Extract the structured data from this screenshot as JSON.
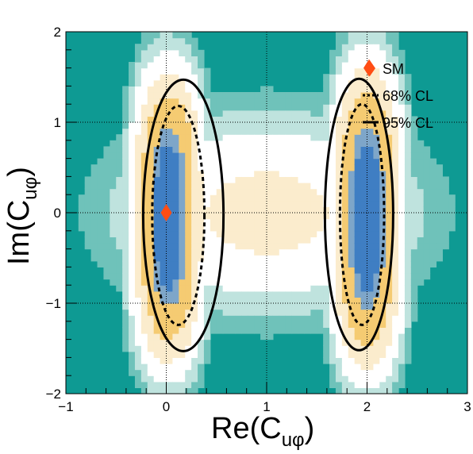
{
  "chart_data": {
    "type": "heatmap",
    "title": "",
    "xlabel": {
      "main": "Re(C",
      "sub": "uφ",
      "close": ")"
    },
    "ylabel": {
      "main": "Im(C",
      "sub": "uφ",
      "close": ")"
    },
    "xlim": [
      -1,
      3
    ],
    "ylim": [
      -2,
      2
    ],
    "xticks": [
      -1,
      0,
      1,
      2,
      3
    ],
    "yticks": [
      -2,
      -1,
      0,
      1,
      2
    ],
    "xtick_labels": [
      "−1",
      "0",
      "1",
      "2",
      "3"
    ],
    "ytick_labels": [
      "−2",
      "−1",
      "0",
      "1",
      "2"
    ],
    "grid": true,
    "legend_position": "top-right",
    "colors": {
      "background": "#0e9a93",
      "best": "#3f7ec3",
      "inner": "#7ea6c9",
      "mid": "#f5cb72",
      "outer": "#fbeccd",
      "edge": "#ffffff",
      "marker": "#ff4d14"
    },
    "islands": [
      {
        "center_x": 0.02,
        "center_y": -0.05,
        "half_width_95": 0.3,
        "half_height_95": 1.5
      },
      {
        "center_x": 2.0,
        "center_y": -0.05,
        "half_width_95": 0.3,
        "half_height_95": 1.55
      }
    ],
    "contours": {
      "cl68": [
        {
          "cx": 0.12,
          "cy": -0.03,
          "rx": 0.26,
          "ry": 1.21
        },
        {
          "cx": 1.95,
          "cy": -0.02,
          "rx": 0.22,
          "ry": 1.22
        }
      ],
      "cl95": [
        {
          "cx": 0.17,
          "cy": -0.03,
          "rx": 0.4,
          "ry": 1.5
        },
        {
          "cx": 1.92,
          "cy": -0.02,
          "rx": 0.34,
          "ry": 1.5
        }
      ]
    },
    "points": [
      {
        "name": "best fit",
        "x": 0.0,
        "y": 0.0
      },
      {
        "name": "SM",
        "x": 2.02,
        "y": 1.6
      }
    ],
    "legend": [
      {
        "label": "SM",
        "style": "marker"
      },
      {
        "label": "68% CL",
        "style": "dotted"
      },
      {
        "label": "95% CL",
        "style": "solid"
      }
    ]
  }
}
